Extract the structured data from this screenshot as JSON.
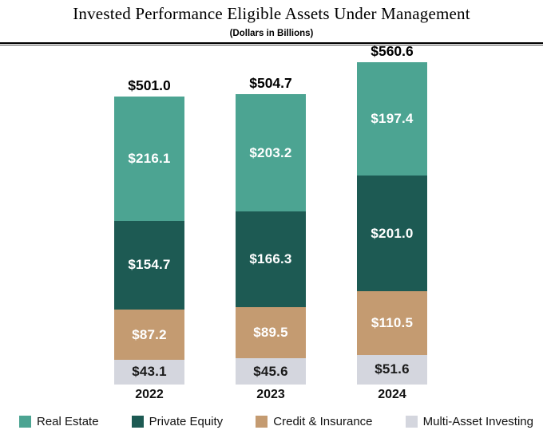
{
  "title": "Invested Performance Eligible Assets Under Management",
  "subtitle": "(Dollars in Billions)",
  "chart_data": {
    "type": "bar",
    "stacked": true,
    "title": "Invested Performance Eligible Assets Under Management",
    "subtitle": "(Dollars in Billions)",
    "categories": [
      "2022",
      "2023",
      "2024"
    ],
    "series": [
      {
        "name": "Real Estate",
        "color": "#4CA492",
        "label_color": "#FFFFFF",
        "values": [
          216.1,
          203.2,
          197.4
        ]
      },
      {
        "name": "Private Equity",
        "color": "#1D5A53",
        "label_color": "#FFFFFF",
        "values": [
          154.7,
          166.3,
          201.0
        ]
      },
      {
        "name": "Credit & Insurance",
        "color": "#C49B71",
        "label_color": "#FFFFFF",
        "values": [
          87.2,
          89.5,
          110.5
        ]
      },
      {
        "name": "Multi-Asset Investing",
        "color": "#D4D6DE",
        "label_color": "#1A1A1A",
        "values": [
          43.1,
          45.6,
          51.6
        ]
      }
    ],
    "stack_order_top_to_bottom": [
      "Real Estate",
      "Private Equity",
      "Credit & Insurance",
      "Multi-Asset Investing"
    ],
    "totals": [
      501.0,
      504.7,
      560.6
    ],
    "total_labels": [
      "$501.0",
      "$504.7",
      "$560.6"
    ],
    "value_prefix": "$",
    "value_decimals": 1,
    "legend_position": "bottom",
    "grid": false,
    "ylim": [
      0,
      600
    ]
  }
}
